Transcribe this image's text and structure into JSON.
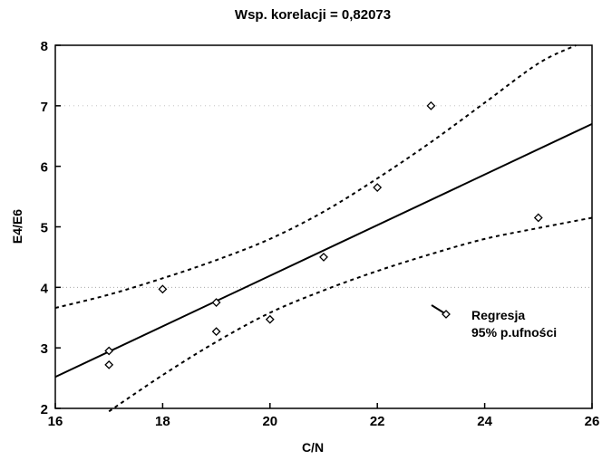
{
  "chart_data": {
    "type": "scatter",
    "title": "Wsp. korelacji = 0,82073",
    "xlabel": "C/N",
    "ylabel": "E4/E6",
    "xlim": [
      16,
      26
    ],
    "ylim": [
      2,
      8
    ],
    "xticks": [
      16,
      18,
      20,
      22,
      24,
      26
    ],
    "yticks": [
      2,
      3,
      4,
      5,
      6,
      7,
      8
    ],
    "grid": false,
    "legend_position": "right",
    "points": [
      {
        "x": 17,
        "y": 2.95
      },
      {
        "x": 17,
        "y": 2.72
      },
      {
        "x": 18,
        "y": 3.97
      },
      {
        "x": 19,
        "y": 3.75
      },
      {
        "x": 19,
        "y": 3.27
      },
      {
        "x": 20,
        "y": 3.47
      },
      {
        "x": 21,
        "y": 4.5
      },
      {
        "x": 22,
        "y": 5.65
      },
      {
        "x": 23,
        "y": 7.0
      },
      {
        "x": 25,
        "y": 5.15
      }
    ],
    "regression": {
      "x": [
        16,
        26
      ],
      "y": [
        2.52,
        6.7
      ]
    },
    "ci_upper": {
      "x": [
        16,
        17,
        18,
        19,
        20,
        21,
        22,
        23,
        24,
        25,
        25.7
      ],
      "y": [
        3.66,
        3.88,
        4.15,
        4.45,
        4.8,
        5.25,
        5.8,
        6.4,
        7.05,
        7.7,
        8.0
      ]
    },
    "ci_lower": {
      "x": [
        17,
        18,
        19,
        20,
        21,
        22,
        23,
        24,
        25,
        26
      ],
      "y": [
        1.95,
        2.55,
        3.1,
        3.58,
        3.95,
        4.27,
        4.55,
        4.8,
        4.98,
        5.15
      ]
    },
    "legend": [
      {
        "label": "Regresja"
      },
      {
        "label": "95% p.ufności"
      }
    ]
  }
}
